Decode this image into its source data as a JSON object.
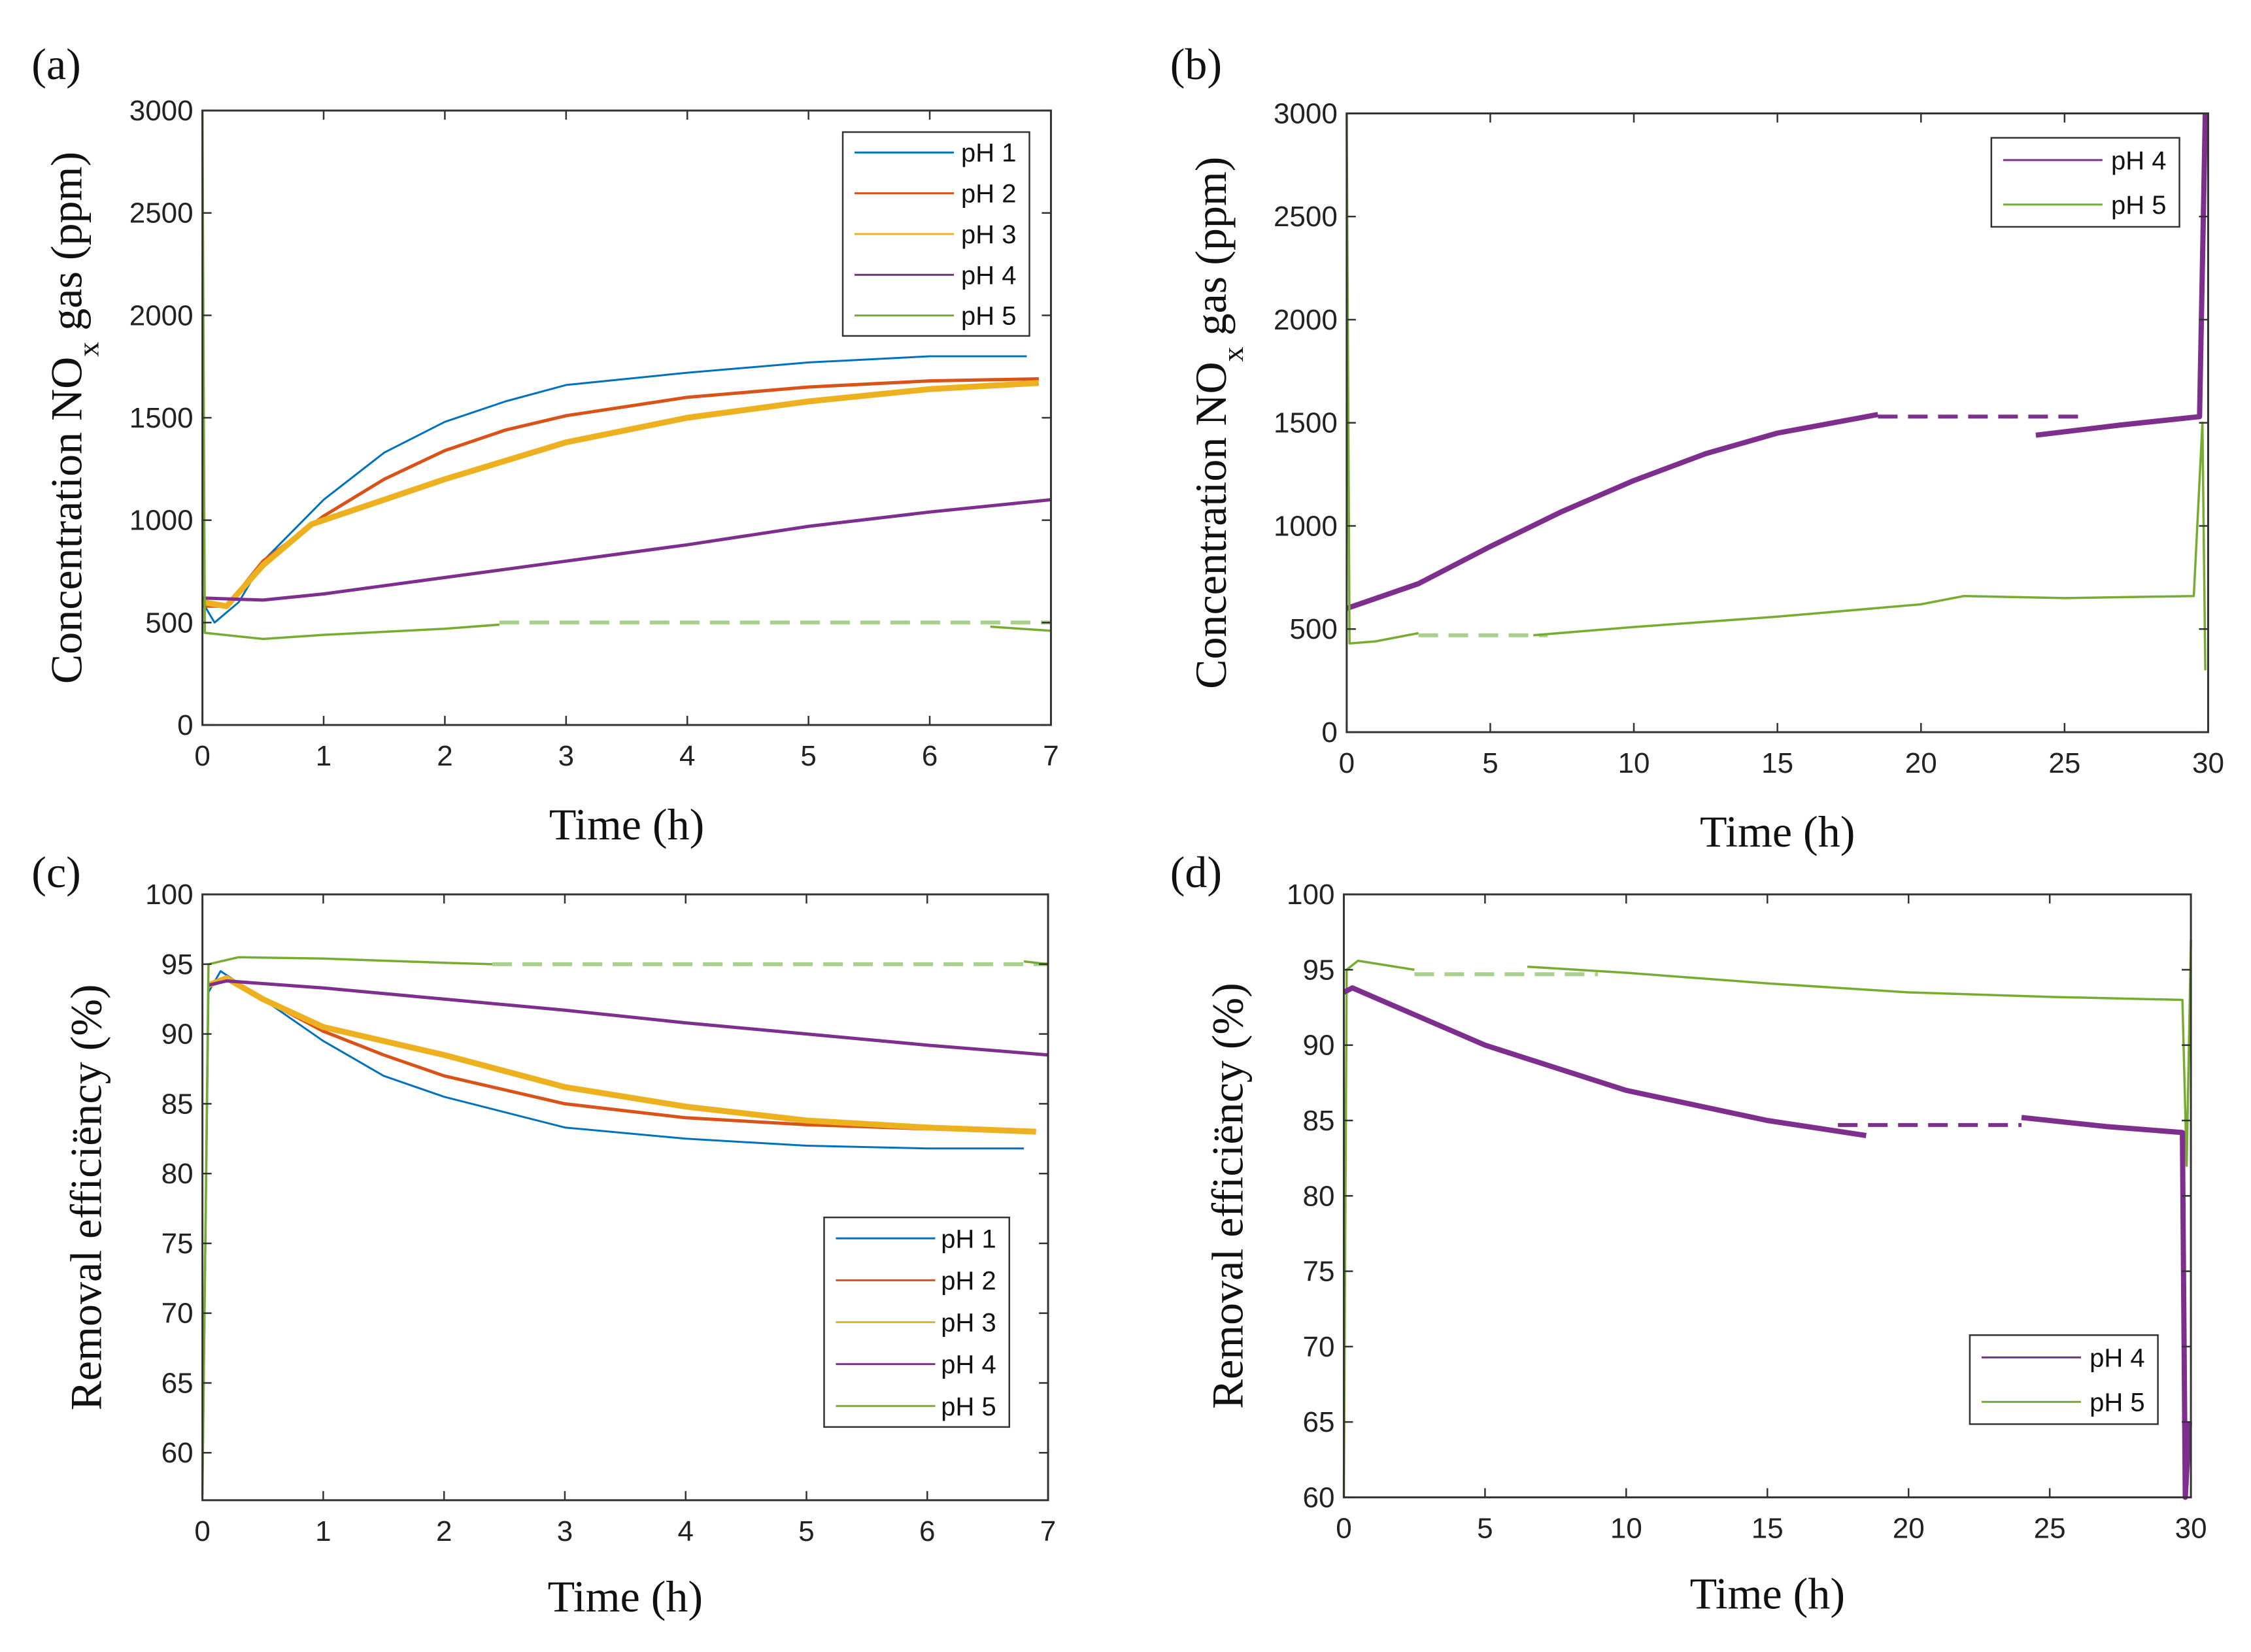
{
  "colors": {
    "pH 1": "#0072BD",
    "pH 2": "#D95319",
    "pH 3": "#EDB120",
    "pH 4": "#7E2F8E",
    "pH 5": "#77AC30",
    "pH 5 dashed": "#A9D18E",
    "pH 4 dashed": "#7E2F8E"
  },
  "chart_data": [
    {
      "panel": "(a)",
      "type": "line",
      "xlabel": "Time (h)",
      "ylabel": {
        "main": "Concentration NO",
        "sub": "x",
        "rest": " gas (ppm)"
      },
      "xlim": [
        0,
        7
      ],
      "ylim": [
        0,
        3000
      ],
      "xticks": [
        0,
        1,
        2,
        3,
        4,
        5,
        6,
        7
      ],
      "yticks": [
        0,
        500,
        1000,
        1500,
        2000,
        2500,
        3000
      ],
      "legend": {
        "entries": [
          "pH 1",
          "pH 2",
          "pH 3",
          "pH 4",
          "pH 5"
        ],
        "position": "top-right"
      },
      "series": [
        {
          "name": "pH 1",
          "style": "solid",
          "points": [
            [
              0,
              600
            ],
            [
              0.1,
              500
            ],
            [
              0.3,
              600
            ],
            [
              0.5,
              800
            ],
            [
              1,
              1100
            ],
            [
              1.5,
              1330
            ],
            [
              2,
              1480
            ],
            [
              2.5,
              1580
            ],
            [
              3,
              1660
            ],
            [
              4,
              1720
            ],
            [
              5,
              1770
            ],
            [
              6,
              1800
            ],
            [
              6.8,
              1800
            ]
          ]
        },
        {
          "name": "pH 2",
          "style": "solid",
          "points": [
            [
              0,
              580
            ],
            [
              0.2,
              580
            ],
            [
              0.5,
              800
            ],
            [
              1,
              1020
            ],
            [
              1.5,
              1200
            ],
            [
              2,
              1340
            ],
            [
              2.5,
              1440
            ],
            [
              3,
              1510
            ],
            [
              4,
              1600
            ],
            [
              5,
              1650
            ],
            [
              6,
              1680
            ],
            [
              6.9,
              1690
            ]
          ]
        },
        {
          "name": "pH 3",
          "style": "solid",
          "points": [
            [
              0,
              600
            ],
            [
              0.2,
              580
            ],
            [
              0.5,
              780
            ],
            [
              0.9,
              980
            ],
            [
              1.5,
              1100
            ],
            [
              2,
              1200
            ],
            [
              3,
              1380
            ],
            [
              4,
              1500
            ],
            [
              5,
              1580
            ],
            [
              6,
              1640
            ],
            [
              6.9,
              1670
            ]
          ]
        },
        {
          "name": "pH 4",
          "style": "solid",
          "points": [
            [
              0,
              620
            ],
            [
              0.5,
              610
            ],
            [
              1,
              640
            ],
            [
              2,
              720
            ],
            [
              3,
              800
            ],
            [
              4,
              880
            ],
            [
              5,
              970
            ],
            [
              6,
              1040
            ],
            [
              7,
              1100
            ]
          ]
        },
        {
          "name": "pH 5",
          "style": "solid",
          "points": [
            [
              0,
              3000
            ],
            [
              0.02,
              450
            ],
            [
              0.5,
              420
            ],
            [
              1,
              440
            ],
            [
              2,
              470
            ],
            [
              2.45,
              490
            ]
          ]
        },
        {
          "name": "pH 5",
          "style": "dashed",
          "points": [
            [
              2.45,
              500
            ],
            [
              7,
              500
            ]
          ]
        },
        {
          "name": "pH 5",
          "style": "solid",
          "points": [
            [
              6.5,
              480
            ],
            [
              7,
              460
            ]
          ]
        }
      ]
    },
    {
      "panel": "(b)",
      "type": "line",
      "xlabel": "Time (h)",
      "ylabel": {
        "main": "Concentration NO",
        "sub": "x",
        "rest": " gas (ppm)"
      },
      "xlim": [
        0,
        30
      ],
      "ylim": [
        0,
        3000
      ],
      "xticks": [
        0,
        5,
        10,
        15,
        20,
        25,
        30
      ],
      "yticks": [
        0,
        500,
        1000,
        1500,
        2000,
        2500,
        3000
      ],
      "legend": {
        "entries": [
          "pH 4",
          "pH 5"
        ],
        "position": "top-right"
      },
      "series": [
        {
          "name": "pH 4",
          "style": "solid",
          "points": [
            [
              0,
              600
            ],
            [
              2.5,
              720
            ],
            [
              5,
              900
            ],
            [
              7.5,
              1070
            ],
            [
              10,
              1220
            ],
            [
              12.5,
              1350
            ],
            [
              15,
              1450
            ],
            [
              18.5,
              1540
            ]
          ]
        },
        {
          "name": "pH 4",
          "style": "dashed",
          "points": [
            [
              18.5,
              1530
            ],
            [
              25.5,
              1530
            ]
          ]
        },
        {
          "name": "pH 4",
          "style": "solid",
          "points": [
            [
              24,
              1440
            ],
            [
              27,
              1490
            ],
            [
              29.7,
              1530
            ],
            [
              29.9,
              3000
            ]
          ]
        },
        {
          "name": "pH 5",
          "style": "solid",
          "points": [
            [
              0,
              3000
            ],
            [
              0.1,
              430
            ],
            [
              1,
              440
            ],
            [
              2.5,
              480
            ]
          ]
        },
        {
          "name": "pH 5",
          "style": "dashed",
          "points": [
            [
              2.5,
              470
            ],
            [
              7,
              470
            ]
          ]
        },
        {
          "name": "pH 5",
          "style": "solid",
          "points": [
            [
              6.5,
              470
            ],
            [
              10,
              510
            ],
            [
              15,
              560
            ],
            [
              20,
              620
            ],
            [
              21.5,
              660
            ],
            [
              25,
              650
            ],
            [
              29.5,
              660
            ],
            [
              29.8,
              1500
            ],
            [
              29.9,
              300
            ]
          ]
        }
      ]
    },
    {
      "panel": "(c)",
      "type": "line",
      "xlabel": "Time (h)",
      "ylabel": {
        "main": "Removal efficiëncy (%)",
        "sub": "",
        "rest": ""
      },
      "xlim": [
        0,
        7
      ],
      "ylim": [
        56.6,
        100
      ],
      "xticks": [
        0,
        1,
        2,
        3,
        4,
        5,
        6,
        7
      ],
      "yticks": [
        60,
        65,
        70,
        75,
        80,
        85,
        90,
        95,
        100
      ],
      "legend": {
        "entries": [
          "pH 1",
          "pH 2",
          "pH 3",
          "pH 4",
          "pH 5"
        ],
        "position": "bottom-right"
      },
      "series": [
        {
          "name": "pH 1",
          "style": "solid",
          "points": [
            [
              0,
              57
            ],
            [
              0.05,
              93
            ],
            [
              0.15,
              94.5
            ],
            [
              0.5,
              92.5
            ],
            [
              1,
              89.5
            ],
            [
              1.5,
              87
            ],
            [
              2,
              85.5
            ],
            [
              3,
              83.3
            ],
            [
              4,
              82.5
            ],
            [
              5,
              82
            ],
            [
              6,
              81.8
            ],
            [
              6.8,
              81.8
            ]
          ]
        },
        {
          "name": "pH 2",
          "style": "solid",
          "points": [
            [
              0.05,
              93.5
            ],
            [
              0.2,
              94
            ],
            [
              0.5,
              92.5
            ],
            [
              1,
              90.2
            ],
            [
              1.5,
              88.5
            ],
            [
              2,
              87
            ],
            [
              3,
              85
            ],
            [
              4,
              84
            ],
            [
              5,
              83.5
            ],
            [
              6,
              83.2
            ],
            [
              6.9,
              83
            ]
          ]
        },
        {
          "name": "pH 3",
          "style": "solid",
          "points": [
            [
              0.05,
              93.5
            ],
            [
              0.2,
              94
            ],
            [
              0.5,
              92.5
            ],
            [
              1,
              90.5
            ],
            [
              2,
              88.5
            ],
            [
              3,
              86.2
            ],
            [
              4,
              84.8
            ],
            [
              5,
              83.8
            ],
            [
              6,
              83.3
            ],
            [
              6.9,
              83
            ]
          ]
        },
        {
          "name": "pH 4",
          "style": "solid",
          "points": [
            [
              0.05,
              93.5
            ],
            [
              0.2,
              93.8
            ],
            [
              1,
              93.3
            ],
            [
              2,
              92.5
            ],
            [
              3,
              91.7
            ],
            [
              4,
              90.8
            ],
            [
              5,
              90
            ],
            [
              6,
              89.2
            ],
            [
              7,
              88.5
            ]
          ]
        },
        {
          "name": "pH 5",
          "style": "solid",
          "points": [
            [
              0,
              57
            ],
            [
              0.05,
              95
            ],
            [
              0.3,
              95.5
            ],
            [
              1,
              95.4
            ],
            [
              2,
              95.1
            ],
            [
              2.4,
              95
            ]
          ]
        },
        {
          "name": "pH 5",
          "style": "dashed",
          "points": [
            [
              2.4,
              95
            ],
            [
              7,
              95
            ]
          ]
        },
        {
          "name": "pH 5",
          "style": "solid",
          "points": [
            [
              6.8,
              95.2
            ],
            [
              7,
              95
            ]
          ]
        }
      ]
    },
    {
      "panel": "(d)",
      "type": "line",
      "xlabel": "Time (h)",
      "ylabel": {
        "main": "Removal efficiëncy (%)",
        "sub": "",
        "rest": ""
      },
      "xlim": [
        0,
        30
      ],
      "ylim": [
        60,
        100
      ],
      "xticks": [
        0,
        5,
        10,
        15,
        20,
        25,
        30
      ],
      "yticks": [
        60,
        65,
        70,
        75,
        80,
        85,
        90,
        95,
        100
      ],
      "legend": {
        "entries": [
          "pH 4",
          "pH 5"
        ],
        "position": "bottom-right"
      },
      "series": [
        {
          "name": "pH 5",
          "style": "solid",
          "points": [
            [
              0,
              60
            ],
            [
              0.1,
              95
            ],
            [
              0.5,
              95.6
            ],
            [
              2.5,
              95
            ]
          ]
        },
        {
          "name": "pH 5",
          "style": "dashed",
          "points": [
            [
              2.5,
              94.7
            ],
            [
              9,
              94.7
            ]
          ]
        },
        {
          "name": "pH 5",
          "style": "solid",
          "points": [
            [
              6.5,
              95.2
            ],
            [
              10,
              94.8
            ],
            [
              15,
              94.1
            ],
            [
              20,
              93.5
            ],
            [
              25,
              93.2
            ],
            [
              29.7,
              93
            ],
            [
              29.85,
              82
            ],
            [
              30,
              97
            ]
          ]
        },
        {
          "name": "pH 4",
          "style": "solid",
          "points": [
            [
              0,
              93.5
            ],
            [
              0.3,
              93.8
            ],
            [
              5,
              90
            ],
            [
              10,
              87
            ],
            [
              15,
              85
            ],
            [
              18.5,
              84
            ]
          ]
        },
        {
          "name": "pH 4",
          "style": "dashed",
          "points": [
            [
              17.5,
              84.7
            ],
            [
              24,
              84.7
            ]
          ]
        },
        {
          "name": "pH 4",
          "style": "solid",
          "points": [
            [
              24,
              85.2
            ],
            [
              27,
              84.6
            ],
            [
              29.7,
              84.2
            ],
            [
              29.8,
              60
            ],
            [
              29.95,
              65
            ]
          ]
        }
      ]
    }
  ]
}
